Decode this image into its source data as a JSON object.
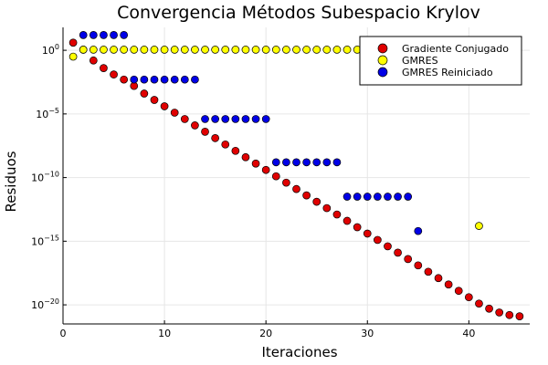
{
  "chart_data": {
    "type": "scatter",
    "title": "Convergencia Métodos Subespacio Krylov",
    "xlabel": "Iteraciones",
    "ylabel": "Residuos",
    "xlim": [
      0,
      46
    ],
    "ylim_log10": [
      -21.5,
      1.8
    ],
    "yscale": "log10",
    "grid": true,
    "legend_position": "top-right",
    "x_ticks": [
      0,
      10,
      20,
      30,
      40
    ],
    "y_ticks": [
      {
        "base": "10",
        "exp": "0",
        "log10": 0
      },
      {
        "base": "10",
        "exp": "−5",
        "log10": -5
      },
      {
        "base": "10",
        "exp": "−10",
        "log10": -10
      },
      {
        "base": "10",
        "exp": "−15",
        "log10": -15
      },
      {
        "base": "10",
        "exp": "−20",
        "log10": -20
      }
    ],
    "series": [
      {
        "name": "Gradiente Conjugado",
        "color": "#e00000",
        "x": [
          1,
          2,
          3,
          4,
          5,
          6,
          7,
          8,
          9,
          10,
          11,
          12,
          13,
          14,
          15,
          16,
          17,
          18,
          19,
          20,
          21,
          22,
          23,
          24,
          25,
          26,
          27,
          28,
          29,
          30,
          31,
          32,
          33,
          34,
          35,
          36,
          37,
          38,
          39,
          40,
          41,
          42,
          43,
          44,
          45
        ],
        "log10_y": [
          0.6,
          0.05,
          -0.8,
          -1.4,
          -1.9,
          -2.3,
          -2.8,
          -3.4,
          -3.9,
          -4.4,
          -4.9,
          -5.4,
          -5.9,
          -6.4,
          -6.9,
          -7.4,
          -7.9,
          -8.4,
          -8.9,
          -9.4,
          -9.9,
          -10.4,
          -10.9,
          -11.4,
          -11.9,
          -12.4,
          -12.9,
          -13.4,
          -13.9,
          -14.4,
          -14.9,
          -15.4,
          -15.9,
          -16.4,
          -16.9,
          -17.4,
          -17.9,
          -18.4,
          -18.9,
          -19.4,
          -19.9,
          -20.3,
          -20.6,
          -20.8,
          -20.9
        ]
      },
      {
        "name": "GMRES",
        "color": "#ffff00",
        "x": [
          1,
          2,
          3,
          4,
          5,
          6,
          7,
          8,
          9,
          10,
          11,
          12,
          13,
          14,
          15,
          16,
          17,
          18,
          19,
          20,
          21,
          22,
          23,
          24,
          25,
          26,
          27,
          28,
          29,
          30,
          31,
          32,
          33,
          34,
          35,
          36,
          37,
          38,
          39,
          40,
          41
        ],
        "log10_y": [
          -0.5,
          0.05,
          0.05,
          0.05,
          0.05,
          0.05,
          0.05,
          0.05,
          0.05,
          0.05,
          0.05,
          0.05,
          0.05,
          0.05,
          0.05,
          0.05,
          0.05,
          0.05,
          0.05,
          0.05,
          0.05,
          0.05,
          0.05,
          0.05,
          0.05,
          0.05,
          0.05,
          0.05,
          0.05,
          0.05,
          0.05,
          0.05,
          0.05,
          0.05,
          0.05,
          0.05,
          0.05,
          0.05,
          0.05,
          0.05,
          -13.8
        ]
      },
      {
        "name": "GMRES Reiniciado",
        "color": "#0000e6",
        "x": [
          2,
          3,
          4,
          5,
          6,
          7,
          8,
          9,
          10,
          11,
          12,
          13,
          14,
          15,
          16,
          17,
          18,
          19,
          20,
          21,
          22,
          23,
          24,
          25,
          26,
          27,
          28,
          29,
          30,
          31,
          32,
          33,
          34,
          35
        ],
        "log10_y": [
          1.2,
          1.2,
          1.2,
          1.2,
          1.2,
          -2.3,
          -2.3,
          -2.3,
          -2.3,
          -2.3,
          -2.3,
          -2.3,
          -5.4,
          -5.4,
          -5.4,
          -5.4,
          -5.4,
          -5.4,
          -5.4,
          -8.8,
          -8.8,
          -8.8,
          -8.8,
          -8.8,
          -8.8,
          -8.8,
          -11.5,
          -11.5,
          -11.5,
          -11.5,
          -11.5,
          -11.5,
          -11.5,
          -14.2
        ]
      }
    ]
  }
}
